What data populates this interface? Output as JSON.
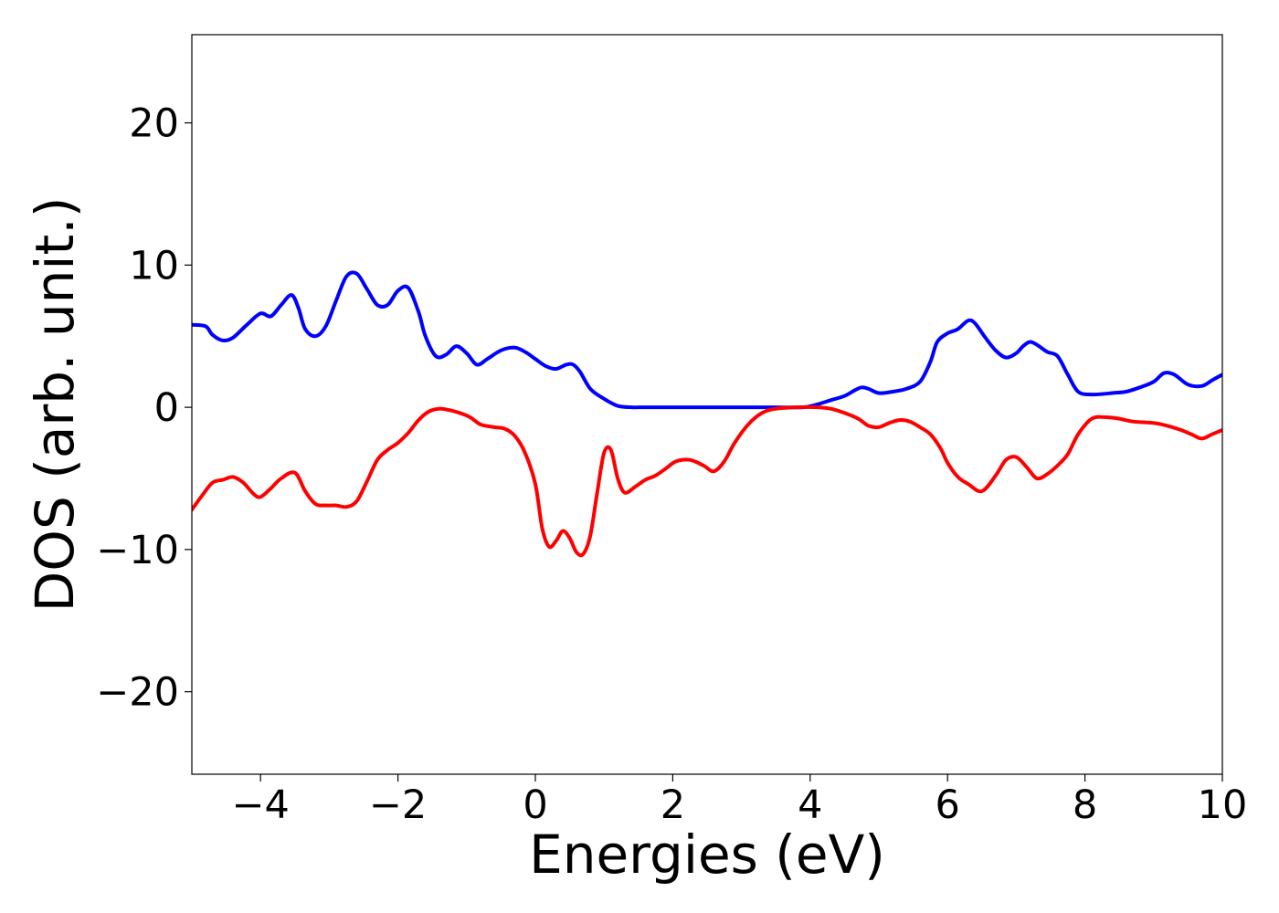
{
  "chart_data": {
    "type": "line",
    "title": "",
    "xlabel": "Energies (eV)",
    "ylabel": "DOS (arb. unit.)",
    "xlim": [
      -5,
      10
    ],
    "ylim": [
      -25.8,
      26.2
    ],
    "grid": false,
    "legend": "none",
    "x_ticks": [
      -4,
      -2,
      0,
      2,
      4,
      6,
      8,
      10
    ],
    "x_tick_labels": [
      "−4",
      "−2",
      "0",
      "2",
      "4",
      "6",
      "8",
      "10"
    ],
    "y_ticks": [
      20,
      10,
      0,
      -10,
      -20
    ],
    "y_tick_labels": [
      "20",
      "10",
      "0",
      "−10",
      "−20"
    ],
    "series": [
      {
        "color": "#0000ff",
        "x": [
          -5.0,
          -4.8,
          -4.7,
          -4.55,
          -4.4,
          -4.2,
          -4.0,
          -3.85,
          -3.7,
          -3.55,
          -3.45,
          -3.35,
          -3.2,
          -3.05,
          -2.9,
          -2.75,
          -2.6,
          -2.45,
          -2.3,
          -2.15,
          -2.0,
          -1.85,
          -1.7,
          -1.6,
          -1.45,
          -1.3,
          -1.15,
          -1.0,
          -0.85,
          -0.7,
          -0.5,
          -0.3,
          -0.15,
          0.0,
          0.15,
          0.3,
          0.45,
          0.55,
          0.65,
          0.8,
          1.0,
          1.2,
          1.4,
          1.6,
          2.0,
          2.5,
          3.0,
          3.5,
          3.9,
          4.1,
          4.3,
          4.5,
          4.65,
          4.75,
          4.85,
          5.0,
          5.2,
          5.4,
          5.6,
          5.75,
          5.85,
          6.0,
          6.15,
          6.3,
          6.4,
          6.55,
          6.7,
          6.85,
          7.0,
          7.1,
          7.2,
          7.3,
          7.45,
          7.6,
          7.75,
          7.9,
          8.1,
          8.4,
          8.6,
          8.8,
          9.0,
          9.15,
          9.3,
          9.5,
          9.7,
          9.85,
          10.0
        ],
        "values": [
          5.8,
          5.7,
          5.1,
          4.7,
          4.9,
          5.8,
          6.6,
          6.4,
          7.2,
          7.9,
          7.0,
          5.5,
          5.0,
          5.7,
          7.5,
          9.2,
          9.4,
          8.3,
          7.2,
          7.2,
          8.2,
          8.4,
          6.7,
          5.0,
          3.6,
          3.7,
          4.3,
          3.8,
          3.0,
          3.4,
          4.0,
          4.2,
          3.9,
          3.4,
          2.9,
          2.7,
          3.0,
          3.0,
          2.5,
          1.3,
          0.6,
          0.1,
          0.0,
          0.0,
          0.0,
          0.0,
          0.0,
          0.0,
          0.0,
          0.2,
          0.5,
          0.8,
          1.2,
          1.4,
          1.3,
          1.0,
          1.1,
          1.3,
          1.8,
          3.2,
          4.6,
          5.2,
          5.5,
          6.1,
          5.9,
          4.9,
          4.0,
          3.5,
          3.8,
          4.3,
          4.6,
          4.4,
          3.9,
          3.6,
          2.3,
          1.1,
          0.9,
          1.0,
          1.1,
          1.4,
          1.8,
          2.4,
          2.3,
          1.6,
          1.5,
          1.9,
          2.3
        ]
      },
      {
        "color": "#ff0000",
        "x": [
          -5.0,
          -4.85,
          -4.7,
          -4.55,
          -4.4,
          -4.25,
          -4.1,
          -4.0,
          -3.85,
          -3.7,
          -3.5,
          -3.35,
          -3.2,
          -3.05,
          -2.9,
          -2.75,
          -2.6,
          -2.45,
          -2.3,
          -2.15,
          -2.0,
          -1.85,
          -1.7,
          -1.55,
          -1.4,
          -1.25,
          -1.1,
          -0.95,
          -0.8,
          -0.6,
          -0.45,
          -0.3,
          -0.15,
          0.0,
          0.1,
          0.2,
          0.3,
          0.4,
          0.5,
          0.6,
          0.7,
          0.8,
          0.9,
          1.0,
          1.1,
          1.2,
          1.3,
          1.45,
          1.6,
          1.75,
          1.9,
          2.05,
          2.25,
          2.45,
          2.6,
          2.75,
          2.9,
          3.1,
          3.3,
          3.5,
          3.8,
          4.1,
          4.3,
          4.5,
          4.7,
          4.85,
          5.0,
          5.15,
          5.3,
          5.45,
          5.6,
          5.75,
          5.9,
          6.0,
          6.15,
          6.3,
          6.5,
          6.7,
          6.85,
          7.0,
          7.15,
          7.3,
          7.45,
          7.6,
          7.75,
          7.9,
          8.1,
          8.3,
          8.5,
          8.7,
          9.0,
          9.2,
          9.4,
          9.55,
          9.7,
          9.85,
          10.0
        ],
        "values": [
          -7.2,
          -6.2,
          -5.3,
          -5.1,
          -4.9,
          -5.3,
          -6.1,
          -6.3,
          -5.7,
          -5.0,
          -4.6,
          -5.9,
          -6.8,
          -6.9,
          -6.9,
          -7.0,
          -6.6,
          -5.2,
          -3.7,
          -3.0,
          -2.5,
          -1.8,
          -0.9,
          -0.3,
          -0.1,
          -0.2,
          -0.4,
          -0.7,
          -1.2,
          -1.4,
          -1.5,
          -2.0,
          -3.2,
          -5.4,
          -8.5,
          -9.8,
          -9.4,
          -8.7,
          -9.2,
          -10.2,
          -10.3,
          -9.0,
          -6.0,
          -3.2,
          -3.0,
          -5.0,
          -6.0,
          -5.6,
          -5.1,
          -4.8,
          -4.3,
          -3.8,
          -3.7,
          -4.1,
          -4.5,
          -3.8,
          -2.5,
          -1.2,
          -0.4,
          -0.1,
          0.0,
          0.0,
          -0.1,
          -0.4,
          -0.8,
          -1.3,
          -1.4,
          -1.1,
          -0.9,
          -1.0,
          -1.4,
          -1.9,
          -2.9,
          -3.9,
          -4.9,
          -5.4,
          -5.9,
          -4.8,
          -3.7,
          -3.5,
          -4.2,
          -5.0,
          -4.7,
          -4.1,
          -3.3,
          -1.9,
          -0.8,
          -0.7,
          -0.8,
          -1.0,
          -1.1,
          -1.3,
          -1.6,
          -1.9,
          -2.2,
          -1.9,
          -1.6
        ]
      }
    ]
  }
}
